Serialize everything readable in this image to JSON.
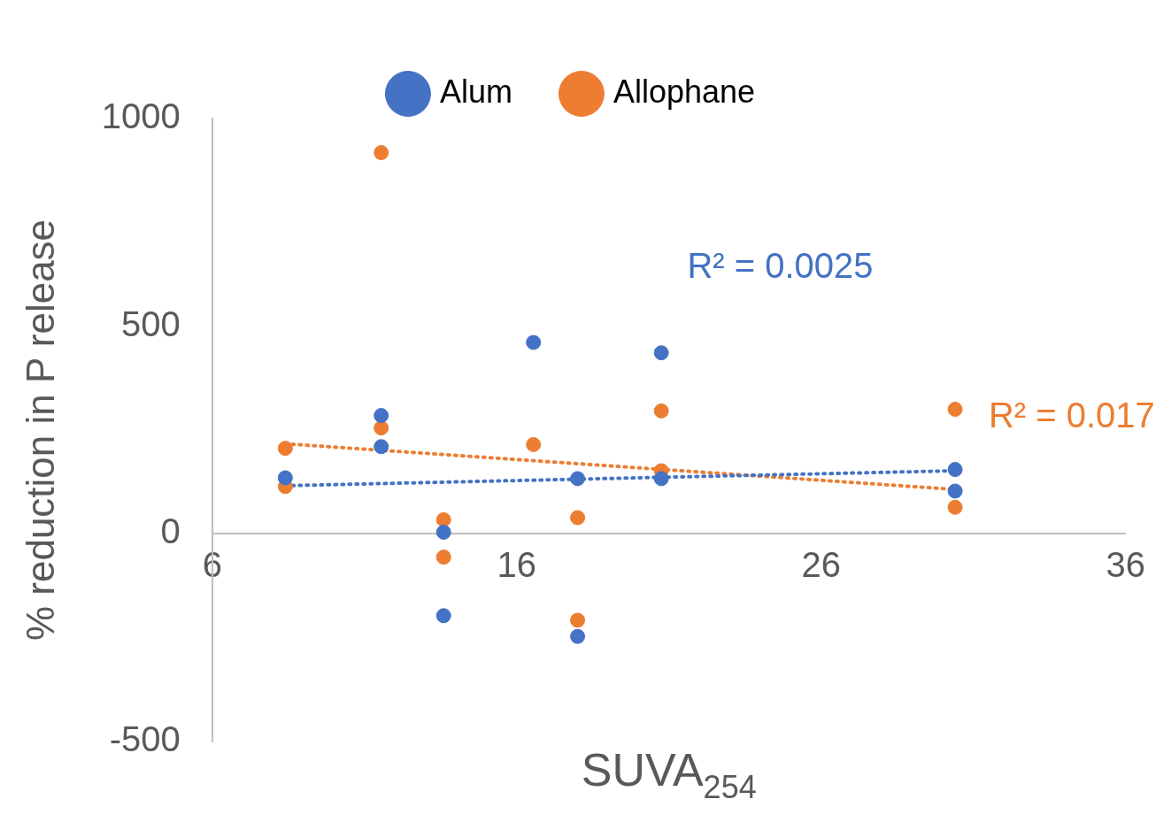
{
  "chart_data": {
    "type": "scatter",
    "xlabel": "SUVA$_{254}$",
    "ylabel": "% reduction in P release",
    "xlim": [
      6,
      36
    ],
    "xticks": [
      6,
      16,
      26,
      36
    ],
    "ylim": [
      -500,
      1000
    ],
    "yticks": [
      -500,
      0,
      500,
      1000
    ],
    "grid": false,
    "legend": "top",
    "series": [
      {
        "name": "Alum",
        "color": "#4472c4",
        "marker": "circle",
        "x": [
          8.4,
          11.55,
          11.55,
          13.6,
          13.6,
          16.55,
          18.0,
          18.0,
          20.75,
          20.75,
          30.4,
          30.4
        ],
        "values": [
          135,
          285,
          210,
          4,
          -197,
          461,
          133,
          -247,
          436,
          133,
          155,
          103
        ]
      },
      {
        "name": "Allophane",
        "color": "#ed7d31",
        "marker": "circle",
        "x": [
          8.4,
          8.4,
          11.55,
          11.55,
          13.6,
          13.6,
          16.55,
          18.0,
          18.0,
          20.75,
          20.75,
          30.4,
          30.4
        ],
        "values": [
          206,
          114,
          918,
          255,
          34,
          -56,
          215,
          39,
          -208,
          296,
          152,
          300,
          64
        ]
      },
      {
        "type": "line",
        "color": "#4472c4",
        "line_style": "dotted",
        "marker": "none",
        "x": [
          8.4,
          30.4
        ],
        "values": [
          116,
          152
        ]
      },
      {
        "type": "line",
        "color": "#ed7d31",
        "line_style": "dotted",
        "marker": "none",
        "x": [
          8.4,
          30.4
        ],
        "values": [
          217,
          107
        ]
      }
    ],
    "annotations": [
      "R² = 0.0025",
      "R² = 0.017"
    ]
  }
}
